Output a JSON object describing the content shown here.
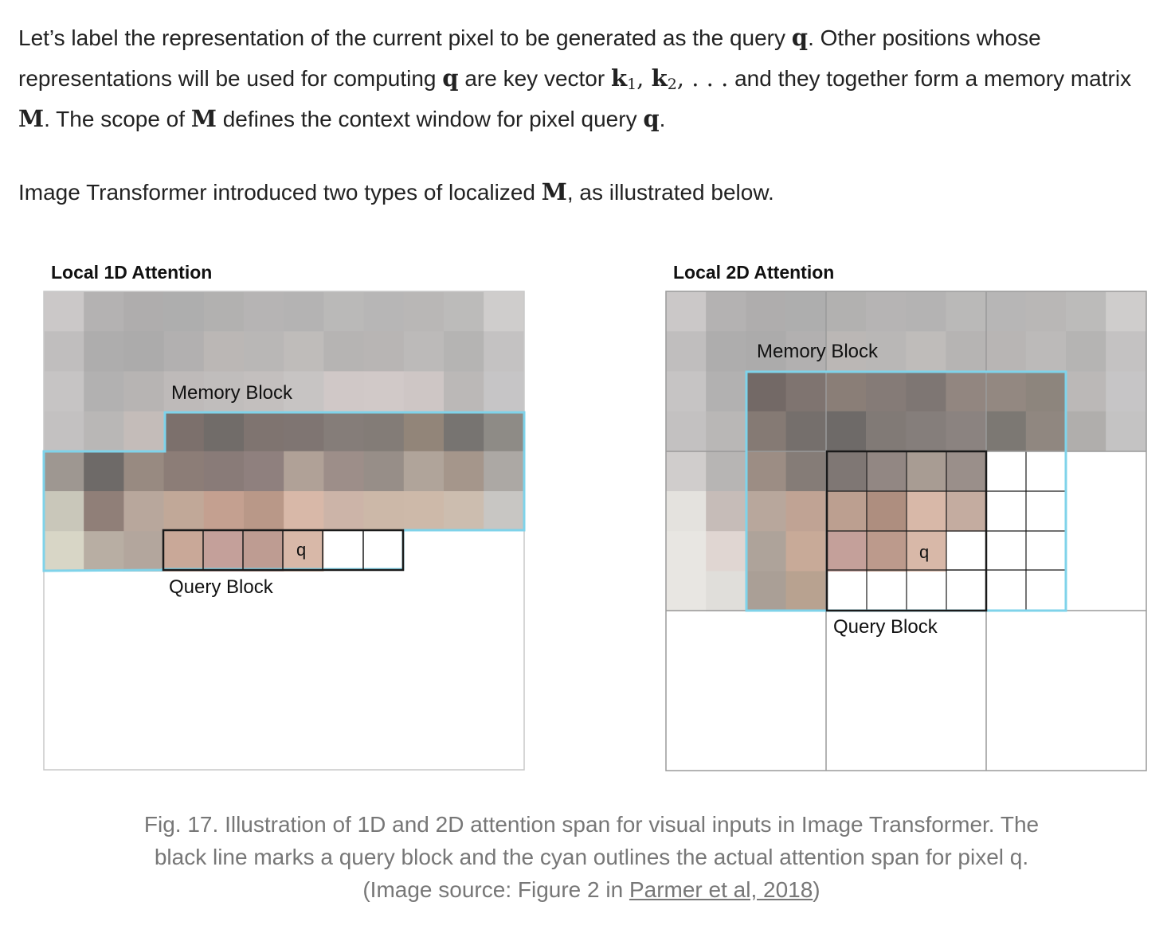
{
  "paragraph1": {
    "t1": "Let’s label the representation of the current pixel to be generated as the query ",
    "q1": "q",
    "t2": ". Other positions whose representations will be used for computing ",
    "q2": "q",
    "t3": " are key vector ",
    "k1": "k",
    "k1_sub": "1",
    "sep1": ", ",
    "k2": "k",
    "k2_sub": "2",
    "ellipsis": ", . . .",
    "t4": " and they together form a memory matrix ",
    "M1": "M",
    "t5": ". The scope of ",
    "M2": "M",
    "t6": " defines the context window for pixel query ",
    "q3": "q",
    "t7": "."
  },
  "paragraph2": {
    "t1": "Image Transformer introduced two types of localized ",
    "M": "M",
    "t2": ", as illustrated below."
  },
  "figure": {
    "left": {
      "title": "Local 1D Attention",
      "memory_label": "Memory Block",
      "query_label": "Query Block",
      "query_pixel": "q"
    },
    "right": {
      "title": "Local 2D Attention",
      "memory_label": "Memory Block",
      "query_label": "Query Block",
      "query_pixel": "q"
    },
    "colors": {
      "cyan_outline": "#7fd3ea",
      "query_block_outline": "#1a1a1a",
      "grid_line": "#c8c8c8"
    }
  },
  "caption": {
    "text": "Fig. 17. Illustration of 1D and 2D attention span for visual inputs in Image Transformer. The black line marks a query block and the cyan outlines the actual attention span for pixel q. (Image source: Figure 2 in ",
    "link": "Parmer et al, 2018",
    "close": ")"
  }
}
